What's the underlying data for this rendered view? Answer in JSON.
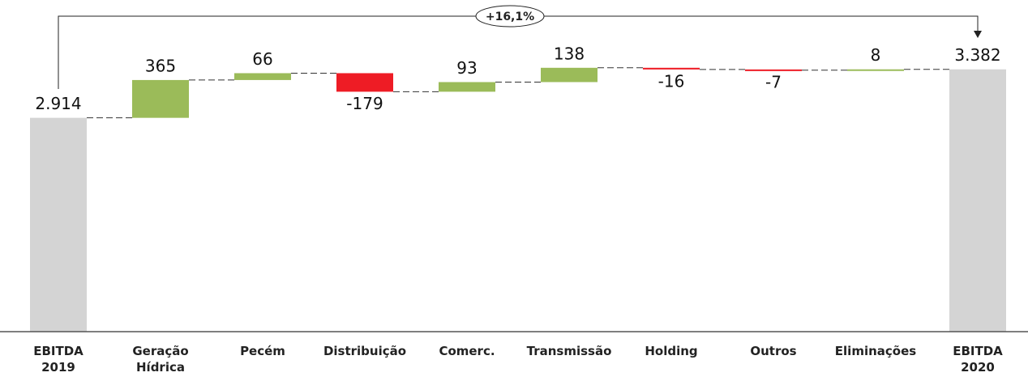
{
  "chart_data": {
    "type": "waterfall",
    "categories": [
      "EBITDA\n2019",
      "Geração\nHídrica",
      "Pecém",
      "Distribuição",
      "Comerc.",
      "Transmissão",
      "Holding",
      "Outros",
      "Eliminações",
      "EBITDA\n2020"
    ],
    "values": [
      2914,
      365,
      66,
      -179,
      93,
      138,
      -16,
      -7,
      8,
      3382
    ],
    "value_labels": [
      "2.914",
      "365",
      "66",
      "-179",
      "93",
      "138",
      "-16",
      "-7",
      "8",
      "3.382"
    ],
    "measure": [
      "absolute",
      "relative",
      "relative",
      "relative",
      "relative",
      "relative",
      "relative",
      "relative",
      "relative",
      "absolute"
    ],
    "colors": {
      "absolute": "#d4d4d4",
      "increase": "#9bbb59",
      "decrease": "#ee1c25"
    },
    "ylim": [
      850,
      3700
    ],
    "annotation": "+16,1%"
  }
}
